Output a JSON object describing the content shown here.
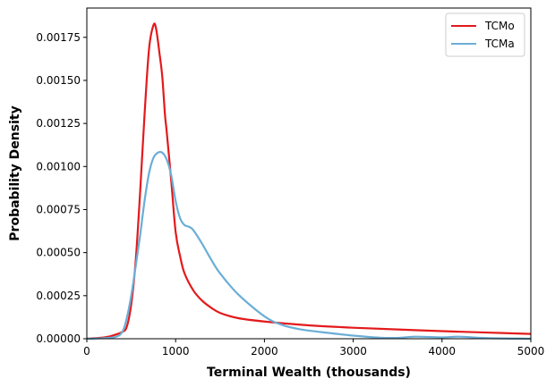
{
  "chart_data": {
    "type": "line",
    "xlabel": "Terminal Wealth (thousands)",
    "ylabel": "Probability Density",
    "xlim": [
      0,
      5000
    ],
    "ylim": [
      0,
      0.00192
    ],
    "xticks": [
      0,
      1000,
      2000,
      3000,
      4000,
      5000
    ],
    "xtick_labels": [
      "0",
      "1000",
      "2000",
      "3000",
      "4000",
      "5000"
    ],
    "yticks": [
      0,
      0.00025,
      0.0005,
      0.00075,
      0.001,
      0.00125,
      0.0015,
      0.00175
    ],
    "ytick_labels": [
      "0.00000",
      "0.00025",
      "0.00050",
      "0.00075",
      "0.00100",
      "0.00125",
      "0.00150",
      "0.00175"
    ],
    "grid": false,
    "legend_position": "top-right",
    "series": [
      {
        "name": "TCMo",
        "color": "#e31a1c",
        "x": [
          0,
          200,
          300,
          400,
          450,
          500,
          550,
          600,
          650,
          700,
          750,
          780,
          820,
          850,
          880,
          900,
          950,
          1000,
          1050,
          1100,
          1200,
          1300,
          1400,
          1500,
          1700,
          2000,
          2500,
          3000,
          3500,
          4000,
          4500,
          5000
        ],
        "y": [
          0,
          8e-06,
          2e-05,
          4e-05,
          7e-05,
          0.0002,
          0.00045,
          0.00085,
          0.0013,
          0.00168,
          0.00182,
          0.0018,
          0.00165,
          0.00152,
          0.0013,
          0.0012,
          0.00092,
          0.00062,
          0.00048,
          0.00038,
          0.00028,
          0.00022,
          0.00018,
          0.00015,
          0.00012,
          0.0001,
          7.8e-05,
          6.4e-05,
          5.4e-05,
          4.4e-05,
          3.6e-05,
          2.8e-05
        ]
      },
      {
        "name": "TCMa",
        "color": "#6baed6",
        "x": [
          0,
          300,
          400,
          450,
          500,
          550,
          600,
          650,
          700,
          750,
          800,
          850,
          900,
          950,
          1000,
          1050,
          1100,
          1150,
          1200,
          1300,
          1400,
          1500,
          1700,
          2000,
          2200,
          2400,
          2700,
          3000,
          3300,
          3500,
          3700,
          4000,
          4200,
          4500,
          5000
        ],
        "y": [
          0,
          8e-06,
          4e-05,
          0.00012,
          0.00025,
          0.00042,
          0.0006,
          0.0008,
          0.00096,
          0.00105,
          0.00108,
          0.00108,
          0.00104,
          0.00095,
          0.0008,
          0.0007,
          0.00066,
          0.00065,
          0.00063,
          0.00055,
          0.00046,
          0.00038,
          0.00026,
          0.00013,
          8e-05,
          5.5e-05,
          3.5e-05,
          1.8e-05,
          6e-06,
          5e-06,
          1.2e-05,
          8e-06,
          1.2e-05,
          4e-06,
          0
        ]
      }
    ]
  }
}
